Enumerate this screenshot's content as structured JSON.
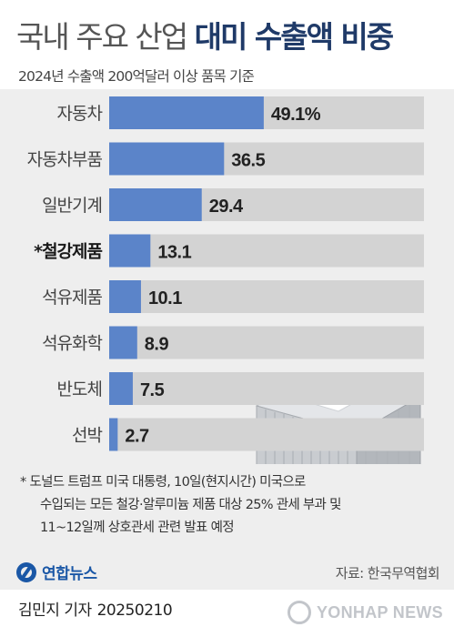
{
  "header": {
    "title_light": "국내 주요 산업",
    "title_bold": "대미 수출액 비중",
    "subtitle": "2024년 수출액 200억달러 이상 품목 기준"
  },
  "chart_data": {
    "type": "bar",
    "orientation": "horizontal",
    "categories": [
      "자동차",
      "자동차부품",
      "일반기계",
      "*철강제품",
      "석유제품",
      "석유화학",
      "반도체",
      "선박"
    ],
    "values": [
      49.1,
      36.5,
      29.4,
      13.1,
      10.1,
      8.9,
      7.5,
      2.7
    ],
    "value_labels": [
      "49.1%",
      "36.5",
      "29.4",
      "13.1",
      "10.1",
      "8.9",
      "7.5",
      "2.7"
    ],
    "highlighted_category": "*철강제품",
    "xlim": [
      0,
      100
    ],
    "grid": false,
    "colors": {
      "bar": "#5b84c9",
      "track": "#d3d3d3",
      "highlight_label": "#1a1a1a"
    }
  },
  "notes": {
    "line1": "* 도널드 트럼프 미국 대통령, 10일(현지시간) 미국으로",
    "line2": "수입되는 모든 철강·알루미늄 제품 대상 25% 관세 부과 및",
    "line3": "11~12일께 상호관세 관련 발표 예정"
  },
  "footer": {
    "logo_text": "연합뉴스",
    "source": "자료: 한국무역협회",
    "author": "김민지 기자",
    "date": "20250210",
    "watermark": "YONHAP NEWS"
  }
}
